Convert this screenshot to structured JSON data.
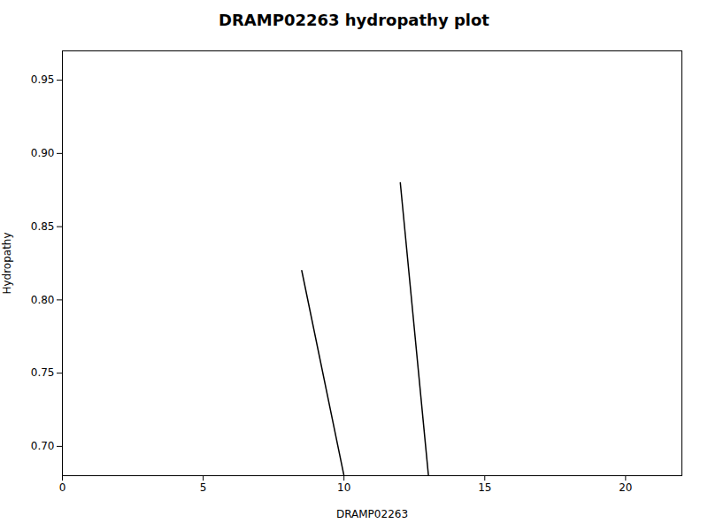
{
  "chart_data": {
    "type": "line",
    "title": "DRAMP02263 hydropathy plot",
    "xlabel": "DRAMP02263",
    "ylabel": "Hydropathy",
    "series": [
      {
        "color": "#000000",
        "x": [
          8.5,
          10.0,
          10.0
        ],
        "values": [
          0.82,
          0.68,
          0.68
        ]
      },
      {
        "color": "#000000",
        "x": [
          12.0,
          13.0,
          13.0
        ],
        "values": [
          0.88,
          0.68,
          0.68
        ]
      }
    ],
    "xlim": [
      0,
      22
    ],
    "xticks": [
      0,
      5,
      10,
      15,
      20
    ],
    "ylim": [
      0.68,
      0.97
    ],
    "yticks": [
      {
        "value": 0.7,
        "label": "0.70"
      },
      0.75,
      {
        "value": 0.8,
        "label": "0.80"
      },
      0.85,
      {
        "value": 0.9,
        "label": "0.90"
      },
      0.95
    ],
    "grid": false
  }
}
